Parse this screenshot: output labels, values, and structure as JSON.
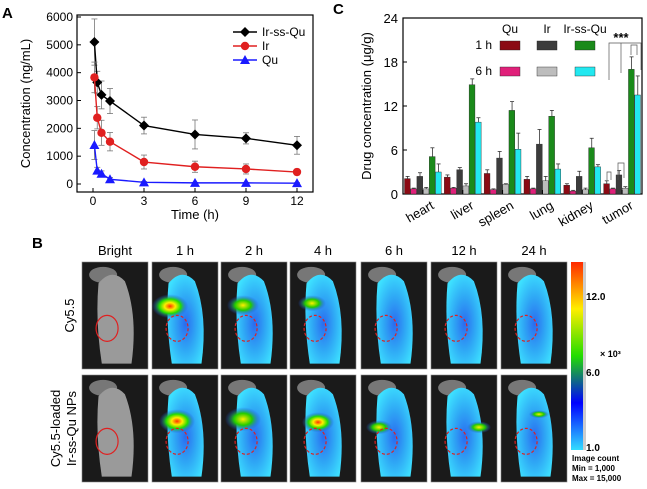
{
  "panel_labels": {
    "a": "A",
    "b": "B",
    "c": "C"
  },
  "chart_data": [
    {
      "type": "line",
      "panel": "A",
      "xlabel": "Time (h)",
      "ylabel": "Concentration (ng/mL)",
      "xlim": [
        -1,
        13.3
      ],
      "ylim": [
        -400,
        6000
      ],
      "xticks": [
        0,
        3,
        6,
        9,
        12
      ],
      "yticks": [
        0,
        1000,
        2000,
        3000,
        4000,
        5000,
        6000
      ],
      "legend_position": "top-right",
      "series": [
        {
          "name": "Ir-ss-Qu",
          "color": "#000000",
          "marker": "diamond",
          "x": [
            0.083,
            0.25,
            0.5,
            1,
            3,
            6,
            9,
            12
          ],
          "y": [
            5100,
            3650,
            3200,
            2980,
            2100,
            1780,
            1640,
            1390
          ],
          "err": [
            830,
            400,
            500,
            450,
            300,
            520,
            200,
            320
          ]
        },
        {
          "name": "Ir",
          "color": "#e02020",
          "marker": "circle",
          "x": [
            0.083,
            0.25,
            0.5,
            1,
            3,
            6,
            9,
            12
          ],
          "y": [
            3830,
            2380,
            1840,
            1520,
            790,
            620,
            540,
            430
          ],
          "err": [
            550,
            400,
            450,
            330,
            250,
            200,
            180,
            100
          ]
        },
        {
          "name": "Qu",
          "color": "#1a1aff",
          "marker": "triangle",
          "x": [
            0.083,
            0.25,
            0.5,
            1,
            3,
            6,
            9,
            12
          ],
          "y": [
            1400,
            480,
            370,
            170,
            60,
            40,
            40,
            30
          ],
          "err": [
            520,
            120,
            100,
            60,
            30,
            20,
            20,
            20
          ]
        }
      ]
    },
    {
      "type": "bar",
      "panel": "C",
      "ylabel": "Drug concentration (μg/g)",
      "ylim": [
        0,
        24
      ],
      "yticks": [
        0,
        6,
        12,
        18,
        24
      ],
      "categories": [
        "heart",
        "liver",
        "spleen",
        "lung",
        "kidney",
        "tumor"
      ],
      "legend": {
        "col_headers": [
          "Qu",
          "Ir",
          "Ir-ss-Qu"
        ],
        "row_headers": [
          "1 h",
          "6 h"
        ]
      },
      "series": [
        {
          "drug": "Qu",
          "time": "1 h",
          "color": "#8b0a14",
          "values": [
            2.1,
            2.3,
            2.8,
            2.0,
            1.2,
            1.4
          ],
          "err": [
            0.3,
            0.3,
            0.5,
            0.4,
            0.2,
            0.4
          ]
        },
        {
          "drug": "Qu",
          "time": "6 h",
          "color": "#e0207a",
          "values": [
            0.7,
            0.8,
            0.6,
            0.7,
            0.4,
            0.7
          ],
          "err": [
            0.1,
            0.1,
            0.1,
            0.1,
            0.1,
            0.1
          ]
        },
        {
          "drug": "Ir",
          "time": "1 h",
          "color": "#3c3c3c",
          "values": [
            2.4,
            3.3,
            4.9,
            6.8,
            2.4,
            2.6
          ],
          "err": [
            0.5,
            0.3,
            0.9,
            2.0,
            0.7,
            0.6
          ]
        },
        {
          "drug": "Ir",
          "time": "6 h",
          "color": "#bdbdbd",
          "values": [
            0.7,
            1.1,
            1.3,
            1.8,
            0.6,
            0.8
          ],
          "err": [
            0.2,
            0.3,
            0.1,
            0.6,
            0.2,
            0.2
          ]
        },
        {
          "drug": "Ir-ss-Qu",
          "time": "1 h",
          "color": "#1a8a1a",
          "values": [
            5.1,
            14.9,
            11.4,
            10.6,
            6.3,
            17.0
          ],
          "err": [
            1.2,
            0.8,
            1.2,
            0.8,
            1.3,
            1.7
          ]
        },
        {
          "drug": "Ir-ss-Qu",
          "time": "6 h",
          "color": "#22e8f0",
          "values": [
            3.0,
            9.8,
            6.1,
            3.4,
            3.7,
            13.5
          ],
          "err": [
            1.1,
            0.6,
            2.2,
            0.7,
            0.3,
            2.6
          ]
        }
      ],
      "annotation": "***"
    }
  ],
  "imaging": {
    "columns": [
      "Bright",
      "1 h",
      "2 h",
      "4 h",
      "6 h",
      "12 h",
      "24 h"
    ],
    "rows": [
      "Cy5.5",
      "Cy5.5-loaded",
      "Ir-ss-Qu NPs"
    ],
    "colorbar": {
      "ticks": [
        "12.0",
        "6.0",
        "1.0"
      ],
      "unit": "× 10³",
      "caption": [
        "Image count",
        "Min = 1,000",
        "Max = 15,000"
      ],
      "colors": [
        "#ff2a00",
        "#ffee00",
        "#22dd00",
        "#0000ff",
        "#33ddff"
      ]
    }
  }
}
